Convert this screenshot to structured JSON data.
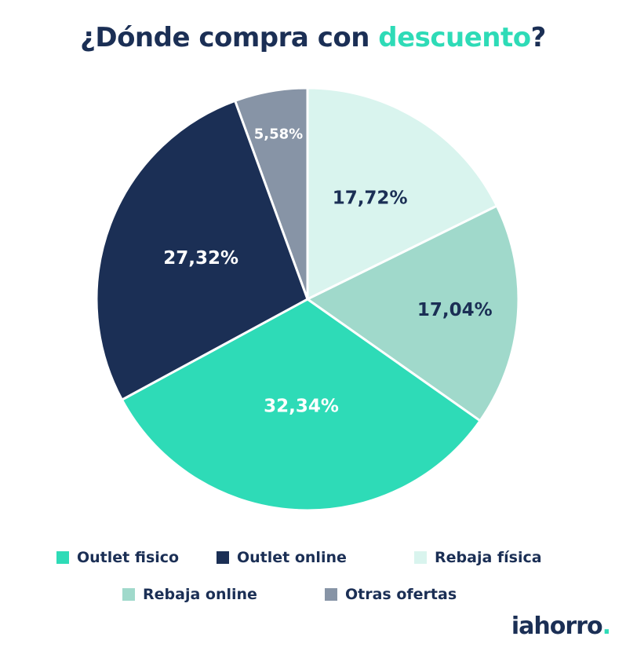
{
  "title": {
    "prefix": "¿Dónde compra con ",
    "highlight": "descuento",
    "suffix": "?"
  },
  "colors": {
    "title": "#1b2f55",
    "accent": "#2edbb7"
  },
  "chart_data": {
    "type": "pie",
    "slices": [
      {
        "name": "Otras ofertas",
        "value": 5.58,
        "label": "5,58%",
        "color": "#8794a6",
        "label_color": "#ffffff"
      },
      {
        "name": "Rebaja física",
        "value": 17.72,
        "label": "17,72%",
        "color": "#d9f4ee",
        "label_color": "#1b2f55"
      },
      {
        "name": "Rebaja online",
        "value": 17.04,
        "label": "17,04%",
        "color": "#a0d9cb",
        "label_color": "#1b2f55"
      },
      {
        "name": "Outlet fisico",
        "value": 32.34,
        "label": "32,34%",
        "color": "#2edbb7",
        "label_color": "#ffffff"
      },
      {
        "name": "Outlet online",
        "value": 27.32,
        "label": "27,32%",
        "color": "#1b2f55",
        "label_color": "#ffffff"
      }
    ],
    "legend": [
      {
        "name": "Outlet fisico",
        "color": "#2edbb7"
      },
      {
        "name": "Outlet online",
        "color": "#1b2f55"
      },
      {
        "name": "Rebaja física",
        "color": "#d9f4ee"
      },
      {
        "name": "Rebaja online",
        "color": "#a0d9cb"
      },
      {
        "name": "Otras ofertas",
        "color": "#8794a6"
      }
    ],
    "legend_position": "bottom"
  },
  "brand": {
    "name": "iahorro",
    "dot": "."
  }
}
